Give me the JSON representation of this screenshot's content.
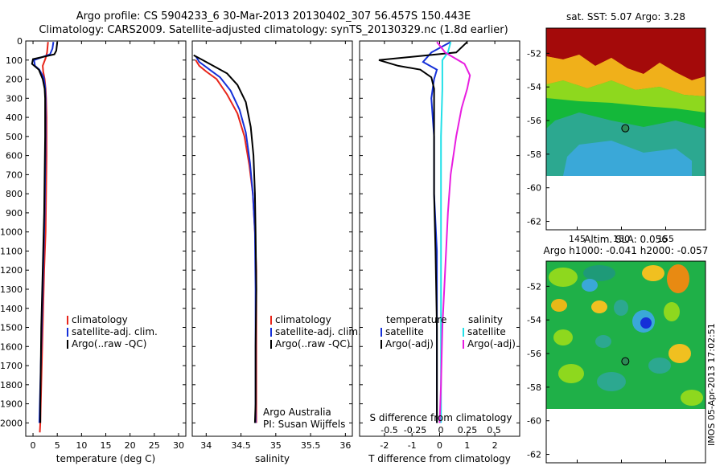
{
  "title_line1": "Argo profile: CS 5904233_6 30-Mar-2013 20130402_307 56.457S 150.443E",
  "title_line2": "Climatology: CARS2009. Satellite-adjusted climatology: synTS_20130329.nc (1.8d earlier)",
  "colors": {
    "climatology": "#e8261b",
    "satellite": "#1530d8",
    "argo": "#000000",
    "salinity_sat": "#22e0e8",
    "salinity_argo": "#e81ee0"
  },
  "chart_data": [
    {
      "type": "line",
      "panel": "temperature",
      "xlabel": "temperature (deg C)",
      "xlim": [
        -1.5,
        31.5
      ],
      "ylim": [
        2070,
        0
      ],
      "xticks": [
        0,
        5,
        10,
        15,
        20,
        25,
        30
      ],
      "yticks": [
        0,
        100,
        200,
        300,
        400,
        500,
        600,
        700,
        800,
        900,
        1000,
        1100,
        1200,
        1300,
        1400,
        1500,
        1600,
        1700,
        1800,
        1900,
        2000
      ],
      "legend": [
        "climatology",
        "satellite-adj. clim.",
        "Argo(..raw -QC)"
      ],
      "series": [
        {
          "name": "climatology",
          "color": "#e8261b",
          "points": [
            [
              3.1,
              5
            ],
            [
              2.9,
              60
            ],
            [
              2.6,
              90
            ],
            [
              2.0,
              130
            ],
            [
              2.1,
              160
            ],
            [
              2.4,
              200
            ],
            [
              2.6,
              250
            ],
            [
              2.7,
              300
            ],
            [
              2.8,
              400
            ],
            [
              2.8,
              600
            ],
            [
              2.7,
              800
            ],
            [
              2.6,
              1000
            ],
            [
              2.3,
              1200
            ],
            [
              2.1,
              1400
            ],
            [
              1.9,
              1600
            ],
            [
              1.7,
              1800
            ],
            [
              1.5,
              2000
            ],
            [
              1.4,
              2050
            ]
          ]
        },
        {
          "name": "satellite-adj. clim.",
          "color": "#1530d8",
          "points": [
            [
              4.2,
              5
            ],
            [
              4.0,
              40
            ],
            [
              3.5,
              70
            ],
            [
              0.2,
              100
            ],
            [
              0.4,
              130
            ],
            [
              1.3,
              150
            ],
            [
              2.2,
              190
            ],
            [
              2.5,
              240
            ],
            [
              2.6,
              300
            ],
            [
              2.6,
              500
            ],
            [
              2.5,
              700
            ],
            [
              2.4,
              900
            ],
            [
              2.2,
              1100
            ],
            [
              2.0,
              1300
            ],
            [
              1.8,
              1500
            ],
            [
              1.6,
              1700
            ],
            [
              1.4,
              1900
            ],
            [
              1.3,
              2000
            ]
          ]
        },
        {
          "name": "Argo(..raw -QC)",
          "color": "#000000",
          "points": [
            [
              5.0,
              5
            ],
            [
              4.8,
              50
            ],
            [
              4.4,
              70
            ],
            [
              0.0,
              95
            ],
            [
              -0.2,
              120
            ],
            [
              1.2,
              150
            ],
            [
              2.0,
              200
            ],
            [
              2.4,
              250
            ],
            [
              2.5,
              300
            ],
            [
              2.5,
              500
            ],
            [
              2.4,
              700
            ],
            [
              2.3,
              900
            ],
            [
              2.1,
              1100
            ],
            [
              1.9,
              1300
            ],
            [
              1.7,
              1500
            ],
            [
              1.6,
              1700
            ],
            [
              1.5,
              1900
            ],
            [
              1.5,
              2000
            ]
          ]
        }
      ]
    },
    {
      "type": "line",
      "panel": "salinity",
      "xlabel": "salinity",
      "xlim": [
        33.8,
        36.1
      ],
      "ylim": [
        2070,
        0
      ],
      "xticks": [
        34,
        34.5,
        35,
        35.5,
        36
      ],
      "legend": [
        "climatology",
        "satellite-adj. clim.",
        "Argo(..raw -QC)"
      ],
      "annotation": [
        "Argo Australia",
        "PI: Susan Wijffels"
      ],
      "series": [
        {
          "name": "climatology",
          "color": "#e8261b",
          "points": [
            [
              33.85,
              100
            ],
            [
              33.9,
              130
            ],
            [
              34.0,
              160
            ],
            [
              34.15,
              200
            ],
            [
              34.3,
              280
            ],
            [
              34.45,
              380
            ],
            [
              34.55,
              500
            ],
            [
              34.62,
              650
            ],
            [
              34.67,
              800
            ],
            [
              34.7,
              1000
            ],
            [
              34.72,
              1200
            ],
            [
              34.72,
              1500
            ],
            [
              34.72,
              1800
            ],
            [
              34.72,
              2000
            ]
          ]
        },
        {
          "name": "satellite-adj. clim.",
          "color": "#1530d8",
          "points": [
            [
              33.85,
              80
            ],
            [
              33.9,
              110
            ],
            [
              34.05,
              150
            ],
            [
              34.2,
              190
            ],
            [
              34.35,
              260
            ],
            [
              34.48,
              360
            ],
            [
              34.57,
              480
            ],
            [
              34.63,
              640
            ],
            [
              34.67,
              800
            ],
            [
              34.7,
              1000
            ],
            [
              34.71,
              1300
            ],
            [
              34.71,
              1600
            ],
            [
              34.71,
              2000
            ]
          ]
        },
        {
          "name": "Argo(..raw -QC)",
          "color": "#000000",
          "points": [
            [
              33.82,
              75
            ],
            [
              33.95,
              100
            ],
            [
              34.1,
              130
            ],
            [
              34.3,
              170
            ],
            [
              34.45,
              230
            ],
            [
              34.57,
              320
            ],
            [
              34.64,
              450
            ],
            [
              34.68,
              600
            ],
            [
              34.7,
              800
            ],
            [
              34.71,
              1000
            ],
            [
              34.72,
              1300
            ],
            [
              34.71,
              1600
            ],
            [
              34.71,
              1900
            ],
            [
              34.7,
              2000
            ]
          ]
        }
      ]
    },
    {
      "type": "line",
      "panel": "difference",
      "xlabel": "T difference from climatology",
      "xlabel_top": "S difference from climatology",
      "xlim": [
        -2.9,
        2.9
      ],
      "ylim": [
        2070,
        0
      ],
      "xticks": [
        -2,
        -1,
        0,
        1,
        2
      ],
      "xticks_top": [
        "-0.5",
        "-0.25",
        "0",
        "0.25",
        "0.5"
      ],
      "legend_headers": [
        "temperature",
        "salinity"
      ],
      "legend": [
        "satellite",
        "Argo(-adj)",
        "satellite",
        "Argo(-adj)"
      ],
      "series": [
        {
          "name": "temperature satellite",
          "color": "#1530d8",
          "points": [
            [
              0.4,
              5
            ],
            [
              -0.3,
              60
            ],
            [
              -0.6,
              110
            ],
            [
              -0.1,
              150
            ],
            [
              -0.2,
              200
            ],
            [
              -0.3,
              300
            ],
            [
              -0.2,
              500
            ],
            [
              -0.2,
              800
            ],
            [
              -0.1,
              1100
            ],
            [
              -0.1,
              1400
            ],
            [
              -0.1,
              1700
            ],
            [
              -0.1,
              2000
            ]
          ]
        },
        {
          "name": "temperature Argo(-adj)",
          "color": "#000000",
          "points": [
            [
              1.0,
              5
            ],
            [
              0.6,
              60
            ],
            [
              -2.2,
              100
            ],
            [
              -1.5,
              130
            ],
            [
              -0.7,
              150
            ],
            [
              -0.3,
              190
            ],
            [
              -0.2,
              250
            ],
            [
              -0.2,
              500
            ],
            [
              -0.2,
              800
            ],
            [
              -0.15,
              1100
            ],
            [
              -0.1,
              1500
            ],
            [
              -0.1,
              2000
            ]
          ]
        },
        {
          "name": "salinity satellite",
          "color": "#22e0e8",
          "points": [
            [
              0.4,
              5
            ],
            [
              0.3,
              60
            ],
            [
              0.1,
              100
            ],
            [
              0.1,
              150
            ],
            [
              0.1,
              250
            ],
            [
              0.05,
              500
            ],
            [
              0.05,
              800
            ],
            [
              0.05,
              1200
            ],
            [
              0.05,
              1600
            ],
            [
              0.05,
              2000
            ]
          ]
        },
        {
          "name": "salinity Argo(-adj)",
          "color": "#e81ee0",
          "points": [
            [
              -0.1,
              5
            ],
            [
              0.2,
              60
            ],
            [
              0.9,
              120
            ],
            [
              1.1,
              180
            ],
            [
              1.0,
              250
            ],
            [
              0.8,
              350
            ],
            [
              0.6,
              500
            ],
            [
              0.4,
              700
            ],
            [
              0.3,
              900
            ],
            [
              0.2,
              1200
            ],
            [
              0.1,
              1500
            ],
            [
              0.05,
              1800
            ],
            [
              0.0,
              2000
            ]
          ]
        }
      ]
    },
    {
      "type": "heatmap",
      "panel": "sst_map",
      "title": "sat. SST: 5.07 Argo: 3.28",
      "xlim": [
        141.5,
        159.5
      ],
      "ylim": [
        -62.5,
        -50.5
      ],
      "xticks": [
        145,
        150,
        155
      ],
      "yticks": [
        -52,
        -54,
        -56,
        -58,
        -60,
        -62
      ],
      "argo_position": [
        150.44,
        -56.46
      ]
    },
    {
      "type": "heatmap",
      "panel": "sla_map",
      "title": "Altim. SLA: 0.056",
      "subtitle": "Argo h1000: -0.041 h2000: -0.057",
      "xlim": [
        141.5,
        159.5
      ],
      "ylim": [
        -62.5,
        -50.5
      ],
      "xticks": [
        145,
        150,
        155
      ],
      "yticks": [
        -52,
        -54,
        -56,
        -58,
        -60,
        -62
      ],
      "argo_position": [
        150.44,
        -56.46
      ]
    }
  ],
  "footer_stamp": "IMOS 05-Apr-2013 17:02:51"
}
